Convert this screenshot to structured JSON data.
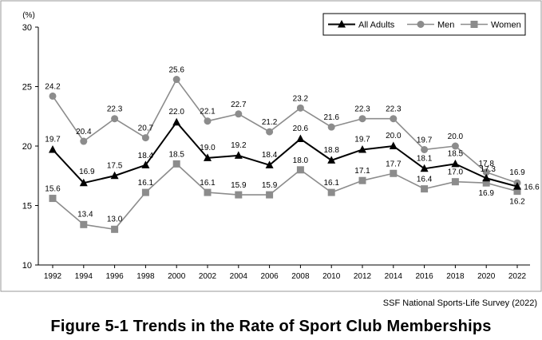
{
  "chart_data": {
    "type": "line",
    "categories": [
      "1992",
      "1994",
      "1996",
      "1998",
      "2000",
      "2002",
      "2004",
      "2006",
      "2008",
      "2010",
      "2012",
      "2014",
      "2016",
      "2018",
      "2020",
      "2022"
    ],
    "series": [
      {
        "name": "All Adults",
        "values": [
          19.7,
          16.9,
          17.5,
          18.4,
          22.0,
          19.0,
          19.2,
          18.4,
          20.6,
          18.8,
          19.7,
          20.0,
          18.1,
          18.5,
          17.3,
          16.6
        ],
        "color": "#000000",
        "marker": "triangle"
      },
      {
        "name": "Men",
        "values": [
          24.2,
          20.4,
          22.3,
          20.7,
          25.6,
          22.1,
          22.7,
          21.2,
          23.2,
          21.6,
          22.3,
          22.3,
          19.7,
          20.0,
          17.8,
          16.9
        ],
        "color": "#8c8c8c",
        "marker": "circle"
      },
      {
        "name": "Women",
        "values": [
          15.6,
          13.4,
          13.0,
          16.1,
          18.5,
          16.1,
          15.9,
          15.9,
          18.0,
          16.1,
          17.1,
          17.7,
          16.4,
          17.0,
          16.9,
          16.2
        ],
        "color": "#8c8c8c",
        "marker": "square"
      }
    ],
    "data_labels": {
      "All Adults": [
        "19.7",
        "16.9",
        "17.5",
        "18.4",
        "22.0",
        "19.0",
        "19.2",
        "18.4",
        "20.6",
        "18.8",
        "19.7",
        "20.0",
        "18.1",
        "18.5",
        "17.3",
        "16.6"
      ],
      "Men": [
        "24.2",
        "20.4",
        "22.3",
        "20.7",
        "25.6",
        "22.1",
        "22.7",
        "21.2",
        "23.2",
        "21.6",
        "22.3",
        "22.3",
        "19.7",
        "20.0",
        "17.8",
        "16.9"
      ],
      "Women": [
        "15.6",
        "13.4",
        "13.0",
        "16.1",
        "18.5",
        "16.1",
        "15.9",
        "15.9",
        "18.0",
        "16.1",
        "17.1",
        "17.7",
        "16.4",
        "17.0",
        "16.9",
        "16.2"
      ]
    },
    "ylabel": "(%)",
    "ylim": [
      10,
      30
    ],
    "yticks": [
      "10",
      "15",
      "20",
      "25",
      "30"
    ],
    "grid": false,
    "legend_position": "top-right"
  },
  "source": "SSF National Sports-Life Survey (2022)",
  "figure_title": "Figure 5-1 Trends in the Rate of Sport Club Memberships"
}
